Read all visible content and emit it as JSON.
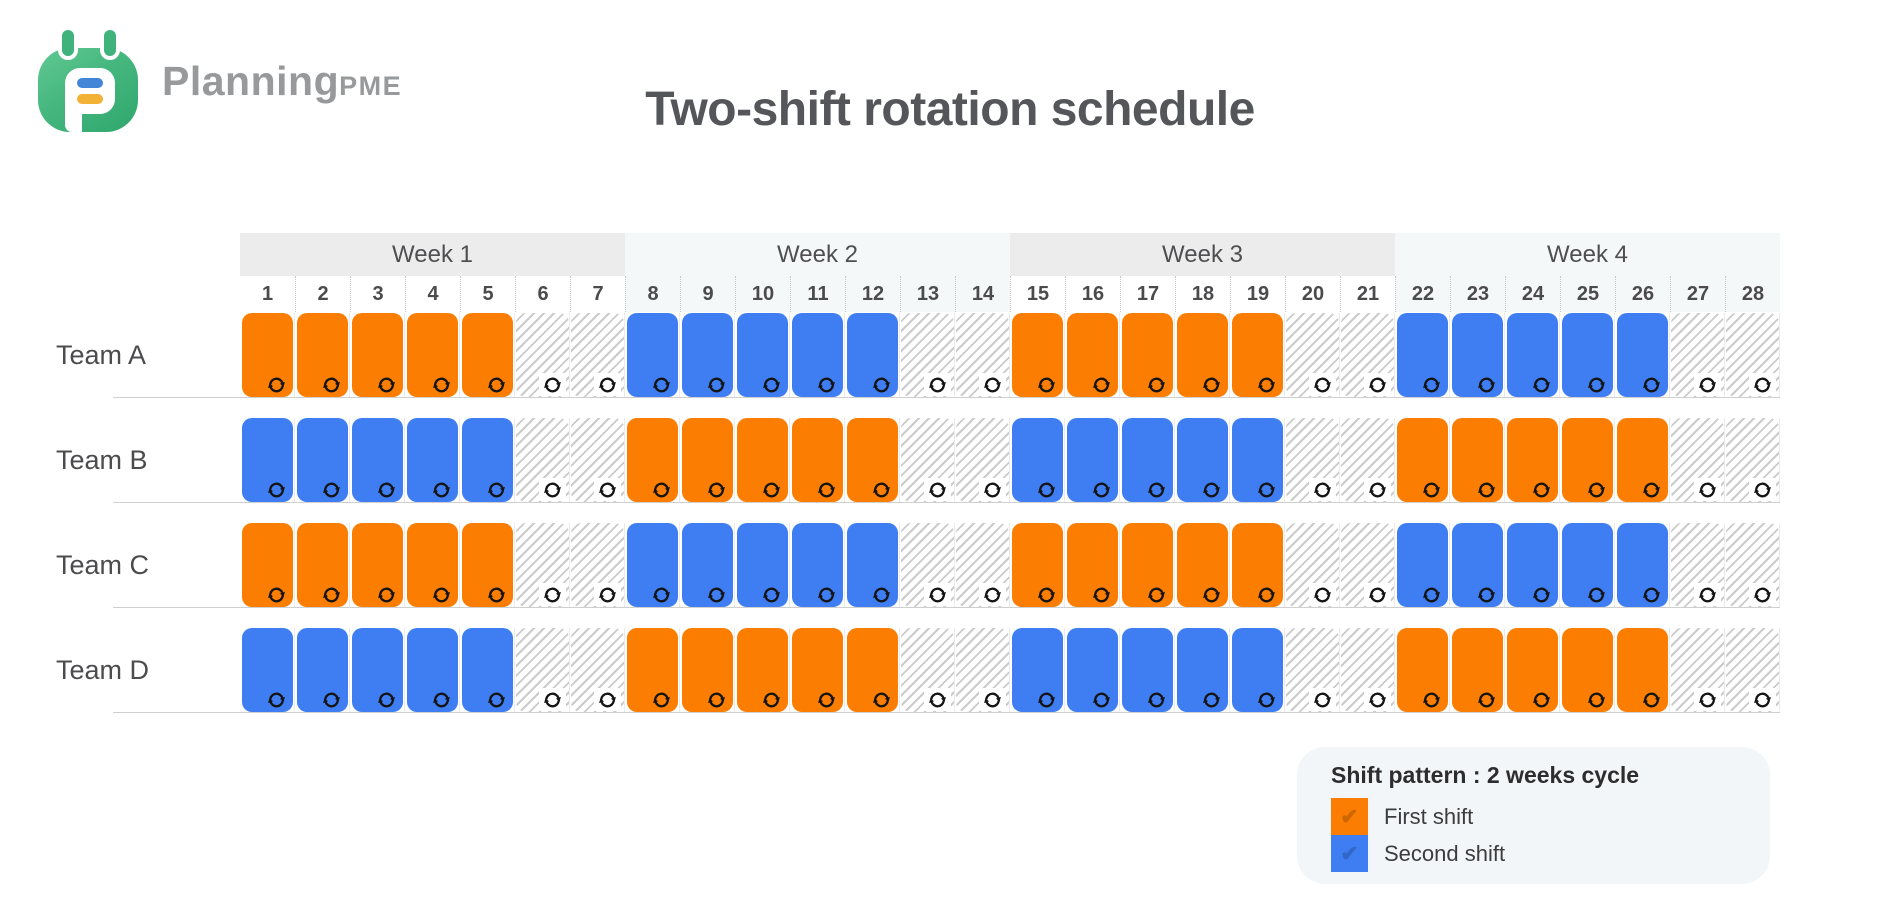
{
  "brand": {
    "main": "Planning",
    "suffix": "PME"
  },
  "page_title": "Two-shift rotation schedule",
  "colors": {
    "first": "#fb7d01",
    "second": "#3e7ef2",
    "hatch_stripe": "#cbcbcb",
    "week_band_odd": "#ececec",
    "week_band_even": "#f5f8f8",
    "logo_green": "#45b77e",
    "logo_blue_dash": "#4386d7",
    "logo_yellow_dash": "#f2b236"
  },
  "icons": {
    "cell": "rotate-icon",
    "legend_check": "✔"
  },
  "legend": {
    "title": "Shift pattern : 2 weeks cycle",
    "items": [
      {
        "key": "first",
        "label": "First shift"
      },
      {
        "key": "second",
        "label": "Second shift"
      }
    ]
  },
  "chart_data": {
    "type": "table",
    "title": "Two-shift rotation schedule",
    "column_groups": [
      {
        "label": "Week 1",
        "days": [
          1,
          2,
          3,
          4,
          5,
          6,
          7
        ]
      },
      {
        "label": "Week 2",
        "days": [
          8,
          9,
          10,
          11,
          12,
          13,
          14
        ]
      },
      {
        "label": "Week 3",
        "days": [
          15,
          16,
          17,
          18,
          19,
          20,
          21
        ]
      },
      {
        "label": "Week 4",
        "days": [
          22,
          23,
          24,
          25,
          26,
          27,
          28
        ]
      }
    ],
    "cell_states": [
      "first",
      "second",
      "off"
    ],
    "rows": [
      {
        "name": "Team A",
        "cells": [
          "first",
          "first",
          "first",
          "first",
          "first",
          "off",
          "off",
          "second",
          "second",
          "second",
          "second",
          "second",
          "off",
          "off",
          "first",
          "first",
          "first",
          "first",
          "first",
          "off",
          "off",
          "second",
          "second",
          "second",
          "second",
          "second",
          "off",
          "off"
        ]
      },
      {
        "name": "Team B",
        "cells": [
          "second",
          "second",
          "second",
          "second",
          "second",
          "off",
          "off",
          "first",
          "first",
          "first",
          "first",
          "first",
          "off",
          "off",
          "second",
          "second",
          "second",
          "second",
          "second",
          "off",
          "off",
          "first",
          "first",
          "first",
          "first",
          "first",
          "off",
          "off"
        ]
      },
      {
        "name": "Team C",
        "cells": [
          "first",
          "first",
          "first",
          "first",
          "first",
          "off",
          "off",
          "second",
          "second",
          "second",
          "second",
          "second",
          "off",
          "off",
          "first",
          "first",
          "first",
          "first",
          "first",
          "off",
          "off",
          "second",
          "second",
          "second",
          "second",
          "second",
          "off",
          "off"
        ]
      },
      {
        "name": "Team D",
        "cells": [
          "second",
          "second",
          "second",
          "second",
          "second",
          "off",
          "off",
          "first",
          "first",
          "first",
          "first",
          "first",
          "off",
          "off",
          "second",
          "second",
          "second",
          "second",
          "second",
          "off",
          "off",
          "first",
          "first",
          "first",
          "first",
          "first",
          "off",
          "off"
        ]
      }
    ]
  }
}
